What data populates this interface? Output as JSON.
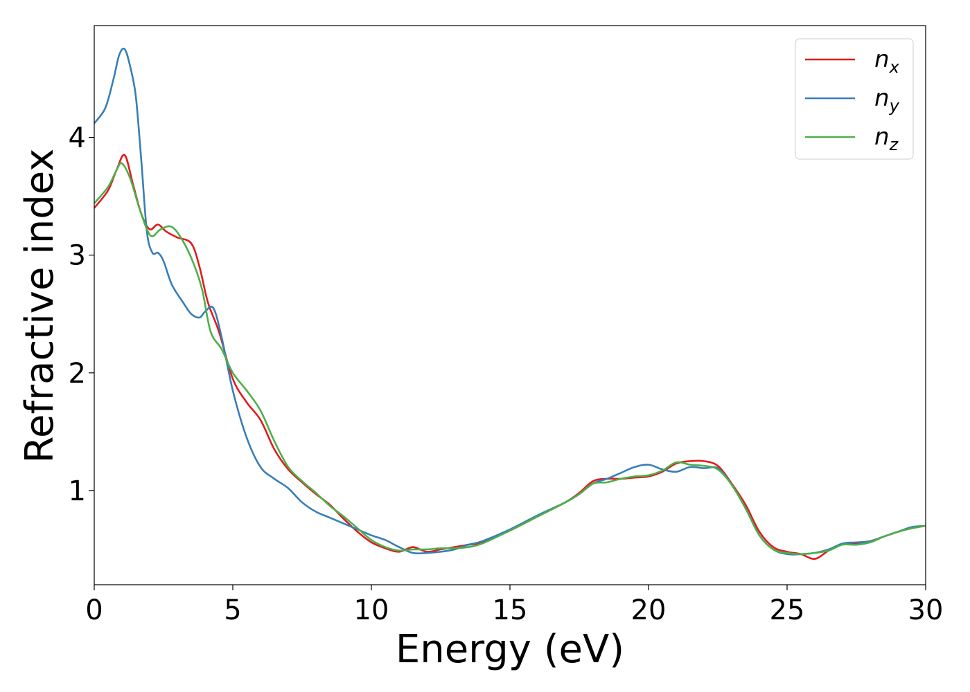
{
  "chart_data": {
    "type": "line",
    "title": "",
    "xlabel": "Energy (eV)",
    "ylabel": "Refractive index",
    "xlim": [
      0,
      30
    ],
    "ylim": [
      0.2,
      4.95
    ],
    "xticks": [
      0,
      5,
      10,
      15,
      20,
      25,
      30
    ],
    "xtick_labels": [
      "0",
      "5",
      "10",
      "15",
      "20",
      "25",
      "30"
    ],
    "yticks": [
      1,
      2,
      3,
      4
    ],
    "ytick_labels": [
      "1",
      "2",
      "3",
      "4"
    ],
    "grid": false,
    "legend_position": "top-right",
    "series": [
      {
        "name": "n",
        "subscript": "x",
        "color": "#e41a1c",
        "x": [
          0,
          0.5,
          0.8,
          1.1,
          1.4,
          1.7,
          2.0,
          2.3,
          2.6,
          3.0,
          3.5,
          3.8,
          4.1,
          4.5,
          5.0,
          5.5,
          6.0,
          6.5,
          7.0,
          7.5,
          8.0,
          8.5,
          9.0,
          9.5,
          10.0,
          10.5,
          11.0,
          11.5,
          12.0,
          12.5,
          13.0,
          13.5,
          14.0,
          15.0,
          16.0,
          17.0,
          17.5,
          18.0,
          18.5,
          19.0,
          19.5,
          20.0,
          20.5,
          21.0,
          21.5,
          22.0,
          22.5,
          23.0,
          23.5,
          24.0,
          24.5,
          25.0,
          25.5,
          26.0,
          26.5,
          27.0,
          27.5,
          28.0,
          28.5,
          29.0,
          29.5,
          30.0
        ],
        "y": [
          3.4,
          3.55,
          3.72,
          3.85,
          3.6,
          3.35,
          3.22,
          3.26,
          3.2,
          3.15,
          3.1,
          2.9,
          2.6,
          2.35,
          1.95,
          1.75,
          1.6,
          1.35,
          1.18,
          1.07,
          0.97,
          0.88,
          0.76,
          0.65,
          0.56,
          0.51,
          0.48,
          0.52,
          0.48,
          0.5,
          0.52,
          0.54,
          0.56,
          0.66,
          0.78,
          0.9,
          0.98,
          1.08,
          1.1,
          1.1,
          1.11,
          1.12,
          1.16,
          1.23,
          1.25,
          1.25,
          1.21,
          1.06,
          0.88,
          0.65,
          0.52,
          0.48,
          0.46,
          0.42,
          0.49,
          0.55,
          0.55,
          0.57,
          0.61,
          0.65,
          0.68,
          0.7
        ]
      },
      {
        "name": "n",
        "subscript": "y",
        "color": "#377eb8",
        "x": [
          0,
          0.4,
          0.7,
          0.9,
          1.1,
          1.3,
          1.5,
          1.7,
          1.9,
          2.1,
          2.3,
          2.5,
          2.8,
          3.2,
          3.5,
          3.8,
          4.0,
          4.3,
          4.6,
          5.0,
          5.5,
          6.0,
          6.5,
          7.0,
          7.5,
          8.0,
          8.5,
          9.0,
          9.5,
          10.0,
          10.5,
          11.0,
          11.5,
          12.0,
          12.5,
          13.0,
          13.5,
          14.0,
          15.0,
          16.0,
          17.0,
          17.5,
          18.0,
          18.5,
          19.0,
          19.5,
          20.0,
          20.5,
          21.0,
          21.5,
          22.0,
          22.5,
          23.0,
          23.5,
          24.0,
          24.5,
          25.0,
          25.5,
          26.0,
          26.5,
          27.0,
          27.5,
          28.0,
          28.5,
          29.0,
          29.5,
          30.0
        ],
        "y": [
          4.12,
          4.25,
          4.5,
          4.7,
          4.75,
          4.6,
          4.35,
          3.8,
          3.2,
          3.02,
          3.02,
          2.95,
          2.75,
          2.6,
          2.5,
          2.47,
          2.52,
          2.55,
          2.3,
          1.85,
          1.45,
          1.2,
          1.1,
          1.02,
          0.9,
          0.82,
          0.77,
          0.72,
          0.67,
          0.62,
          0.58,
          0.52,
          0.47,
          0.47,
          0.48,
          0.5,
          0.54,
          0.57,
          0.67,
          0.79,
          0.9,
          0.97,
          1.06,
          1.1,
          1.15,
          1.2,
          1.22,
          1.18,
          1.16,
          1.2,
          1.19,
          1.19,
          1.05,
          0.85,
          0.62,
          0.5,
          0.46,
          0.46,
          0.47,
          0.5,
          0.55,
          0.56,
          0.57,
          0.61,
          0.65,
          0.69,
          0.7
        ]
      },
      {
        "name": "n",
        "subscript": "z",
        "color": "#4daf4a",
        "x": [
          0,
          0.5,
          0.8,
          1.0,
          1.3,
          1.6,
          1.9,
          2.1,
          2.4,
          2.8,
          3.2,
          3.6,
          3.9,
          4.2,
          4.6,
          5.0,
          5.5,
          6.0,
          6.5,
          7.0,
          7.5,
          8.0,
          8.5,
          9.0,
          9.5,
          10.0,
          10.5,
          11.0,
          11.5,
          12.0,
          12.5,
          13.0,
          13.5,
          14.0,
          15.0,
          16.0,
          17.0,
          17.5,
          18.0,
          18.5,
          19.0,
          19.5,
          20.0,
          20.5,
          21.0,
          21.5,
          22.0,
          22.5,
          23.0,
          23.5,
          24.0,
          24.5,
          25.0,
          25.5,
          26.0,
          26.5,
          27.0,
          27.5,
          28.0,
          28.5,
          29.0,
          29.5,
          30.0
        ],
        "y": [
          3.44,
          3.58,
          3.72,
          3.78,
          3.65,
          3.42,
          3.22,
          3.16,
          3.22,
          3.24,
          3.12,
          2.92,
          2.7,
          2.35,
          2.2,
          2.0,
          1.85,
          1.68,
          1.42,
          1.2,
          1.08,
          0.98,
          0.87,
          0.78,
          0.68,
          0.58,
          0.52,
          0.49,
          0.5,
          0.5,
          0.51,
          0.51,
          0.52,
          0.55,
          0.66,
          0.78,
          0.9,
          0.97,
          1.06,
          1.07,
          1.1,
          1.12,
          1.13,
          1.17,
          1.24,
          1.22,
          1.21,
          1.18,
          1.05,
          0.85,
          0.62,
          0.5,
          0.47,
          0.46,
          0.47,
          0.49,
          0.54,
          0.54,
          0.56,
          0.61,
          0.65,
          0.68,
          0.7
        ]
      }
    ]
  }
}
